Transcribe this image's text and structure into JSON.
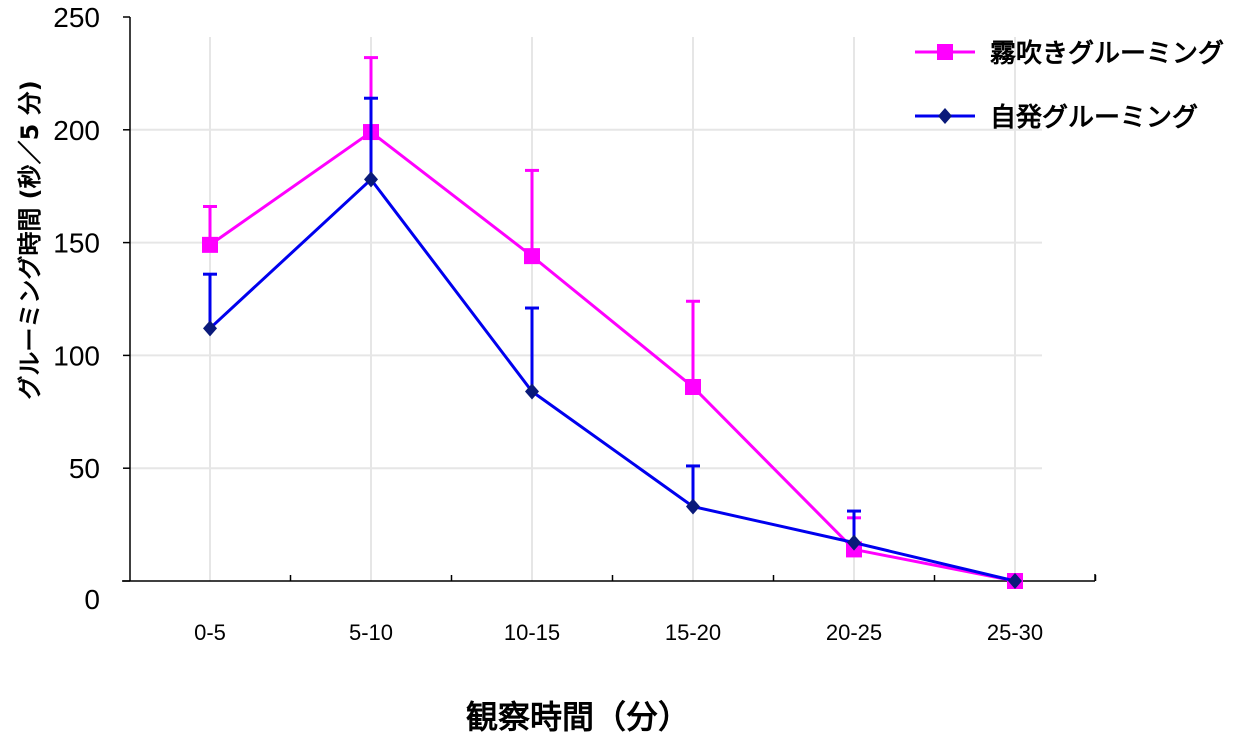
{
  "chart_data": {
    "type": "line",
    "title": "",
    "xlabel": "観察時間（分）",
    "ylabel": "グルーミング時間 (秒／5 分)",
    "categories": [
      "0-5",
      "5-10",
      "10-15",
      "15-20",
      "20-25",
      "25-30"
    ],
    "ylim": [
      0,
      250
    ],
    "yticks": [
      0,
      50,
      100,
      150,
      200,
      250
    ],
    "grid": true,
    "legend_position": "top-right",
    "series": [
      {
        "name": "霧吹きグルーミング",
        "color": "#ff00ff",
        "marker": "square",
        "values": [
          149,
          199,
          144,
          86,
          14,
          0
        ],
        "error_upper": [
          166,
          232,
          182,
          124,
          28,
          0
        ]
      },
      {
        "name": "自発グルーミング",
        "color": "#0000ee",
        "marker_color": "#0a1a7a",
        "marker": "diamond",
        "values": [
          112,
          178,
          84,
          33,
          17,
          0
        ],
        "error_upper": [
          136,
          214,
          121,
          51,
          31,
          0
        ]
      }
    ]
  }
}
